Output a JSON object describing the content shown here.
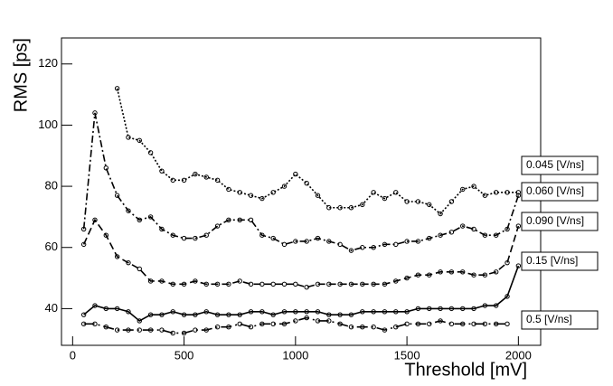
{
  "chart_data": {
    "type": "line",
    "xlabel": "Threshold [mV]",
    "ylabel": "RMS [ps]",
    "x": [
      50,
      100,
      150,
      200,
      250,
      300,
      350,
      400,
      450,
      500,
      550,
      600,
      650,
      700,
      750,
      800,
      850,
      900,
      950,
      1000,
      1050,
      1100,
      1150,
      1200,
      1250,
      1300,
      1350,
      1400,
      1450,
      1500,
      1550,
      1600,
      1650,
      1700,
      1750,
      1800,
      1850,
      1900,
      1950,
      2000
    ],
    "xlim": [
      -50,
      2100
    ],
    "ylim": [
      28,
      128.5
    ],
    "xticks": [
      0,
      500,
      1000,
      1500,
      2000
    ],
    "yticks": [
      40,
      60,
      80,
      100,
      120
    ],
    "series": [
      {
        "name": "0.045 [V/ns]",
        "color": "#000000",
        "style": "dotted",
        "values": [
          null,
          null,
          null,
          112,
          96,
          95,
          91,
          85,
          82,
          82,
          84,
          83,
          82,
          79,
          78,
          77,
          76,
          78,
          80,
          84,
          81,
          77,
          73,
          73,
          73,
          74,
          78,
          76,
          78,
          75,
          75,
          74,
          71,
          75,
          79,
          80,
          77,
          78,
          78,
          78
        ]
      },
      {
        "name": "0.060 [V/ns]",
        "color": "#000000",
        "style": "dashdot",
        "values": [
          66,
          104,
          86,
          77,
          72,
          69,
          70,
          66,
          64,
          63,
          63,
          64,
          67,
          69,
          69,
          69,
          64,
          63,
          61,
          62,
          62,
          63,
          62,
          61,
          59,
          60,
          60,
          61,
          61,
          62,
          62,
          63,
          64,
          65,
          67,
          66,
          64,
          64,
          66,
          77
        ]
      },
      {
        "name": "0.090 [V/ns]",
        "color": "#000000",
        "style": "dashed",
        "values": [
          61,
          69,
          64,
          57,
          55,
          53,
          49,
          49,
          48,
          48,
          49,
          48,
          48,
          48,
          49,
          48,
          48,
          48,
          48,
          48,
          47,
          48,
          48,
          48,
          48,
          48,
          48,
          48,
          49,
          50,
          51,
          51,
          52,
          52,
          52,
          51,
          51,
          52,
          55,
          67
        ]
      },
      {
        "name": "0.15 [V/ns]",
        "color": "#000000",
        "style": "solid",
        "values": [
          38,
          41,
          40,
          40,
          39,
          36,
          38,
          38,
          39,
          38,
          38,
          39,
          38,
          38,
          38,
          39,
          39,
          38,
          39,
          39,
          39,
          39,
          38,
          38,
          38,
          39,
          39,
          39,
          39,
          39,
          40,
          40,
          40,
          40,
          40,
          40,
          41,
          41,
          44,
          54
        ]
      },
      {
        "name": "0.5 [V/ns]",
        "color": "#000000",
        "style": "longdash",
        "values": [
          35,
          35,
          34,
          33,
          33,
          33,
          33,
          33,
          32,
          32,
          33,
          33,
          34,
          34,
          35,
          34,
          35,
          35,
          35,
          36,
          37,
          36,
          36,
          35,
          34,
          34,
          34,
          33,
          34,
          35,
          35,
          35,
          36,
          35,
          35,
          35,
          35,
          35,
          35,
          null
        ]
      }
    ]
  }
}
